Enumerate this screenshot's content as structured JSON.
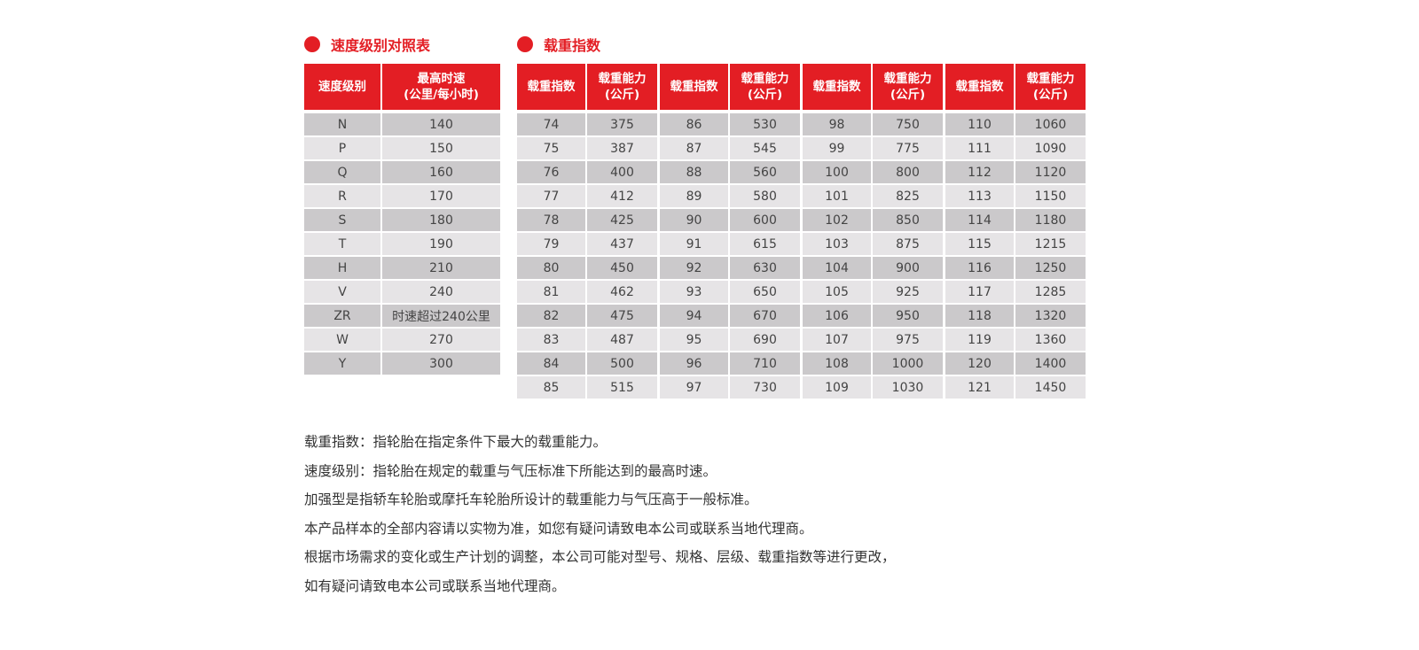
{
  "speed": {
    "title": "速度级别对照表",
    "headers": [
      "速度级别",
      "最高时速\n(公里/每小时)"
    ],
    "rows": [
      [
        "N",
        "140"
      ],
      [
        "P",
        "150"
      ],
      [
        "Q",
        "160"
      ],
      [
        "R",
        "170"
      ],
      [
        "S",
        "180"
      ],
      [
        "T",
        "190"
      ],
      [
        "H",
        "210"
      ],
      [
        "V",
        "240"
      ],
      [
        "ZR",
        "时速超过240公里"
      ],
      [
        "W",
        "270"
      ],
      [
        "Y",
        "300"
      ]
    ]
  },
  "load": {
    "title": "载重指数",
    "headers": [
      "载重指数",
      "载重能力\n(公斤)"
    ],
    "groups": [
      [
        [
          "74",
          "375"
        ],
        [
          "75",
          "387"
        ],
        [
          "76",
          "400"
        ],
        [
          "77",
          "412"
        ],
        [
          "78",
          "425"
        ],
        [
          "79",
          "437"
        ],
        [
          "80",
          "450"
        ],
        [
          "81",
          "462"
        ],
        [
          "82",
          "475"
        ],
        [
          "83",
          "487"
        ],
        [
          "84",
          "500"
        ],
        [
          "85",
          "515"
        ]
      ],
      [
        [
          "86",
          "530"
        ],
        [
          "87",
          "545"
        ],
        [
          "88",
          "560"
        ],
        [
          "89",
          "580"
        ],
        [
          "90",
          "600"
        ],
        [
          "91",
          "615"
        ],
        [
          "92",
          "630"
        ],
        [
          "93",
          "650"
        ],
        [
          "94",
          "670"
        ],
        [
          "95",
          "690"
        ],
        [
          "96",
          "710"
        ],
        [
          "97",
          "730"
        ]
      ],
      [
        [
          "98",
          "750"
        ],
        [
          "99",
          "775"
        ],
        [
          "100",
          "800"
        ],
        [
          "101",
          "825"
        ],
        [
          "102",
          "850"
        ],
        [
          "103",
          "875"
        ],
        [
          "104",
          "900"
        ],
        [
          "105",
          "925"
        ],
        [
          "106",
          "950"
        ],
        [
          "107",
          "975"
        ],
        [
          "108",
          "1000"
        ],
        [
          "109",
          "1030"
        ]
      ],
      [
        [
          "110",
          "1060"
        ],
        [
          "111",
          "1090"
        ],
        [
          "112",
          "1120"
        ],
        [
          "113",
          "1150"
        ],
        [
          "114",
          "1180"
        ],
        [
          "115",
          "1215"
        ],
        [
          "116",
          "1250"
        ],
        [
          "117",
          "1285"
        ],
        [
          "118",
          "1320"
        ],
        [
          "119",
          "1360"
        ],
        [
          "120",
          "1400"
        ],
        [
          "121",
          "1450"
        ]
      ]
    ]
  },
  "notes": [
    "载重指数：指轮胎在指定条件下最大的载重能力。",
    "速度级别：指轮胎在规定的载重与气压标准下所能达到的最高时速。",
    "加强型是指轿车轮胎或摩托车轮胎所设计的载重能力与气压高于一般标准。",
    "本产品样本的全部内容请以实物为准，如您有疑问请致电本公司或联系当地代理商。",
    "根据市场需求的变化或生产计划的调整，本公司可能对型号、规格、层级、载重指数等进行更改，",
    "如有疑问请致电本公司或联系当地代理商。"
  ],
  "colors": {
    "accent": "#e31e24",
    "row_dark": "#cbc9cb",
    "row_light": "#e6e4e6"
  }
}
